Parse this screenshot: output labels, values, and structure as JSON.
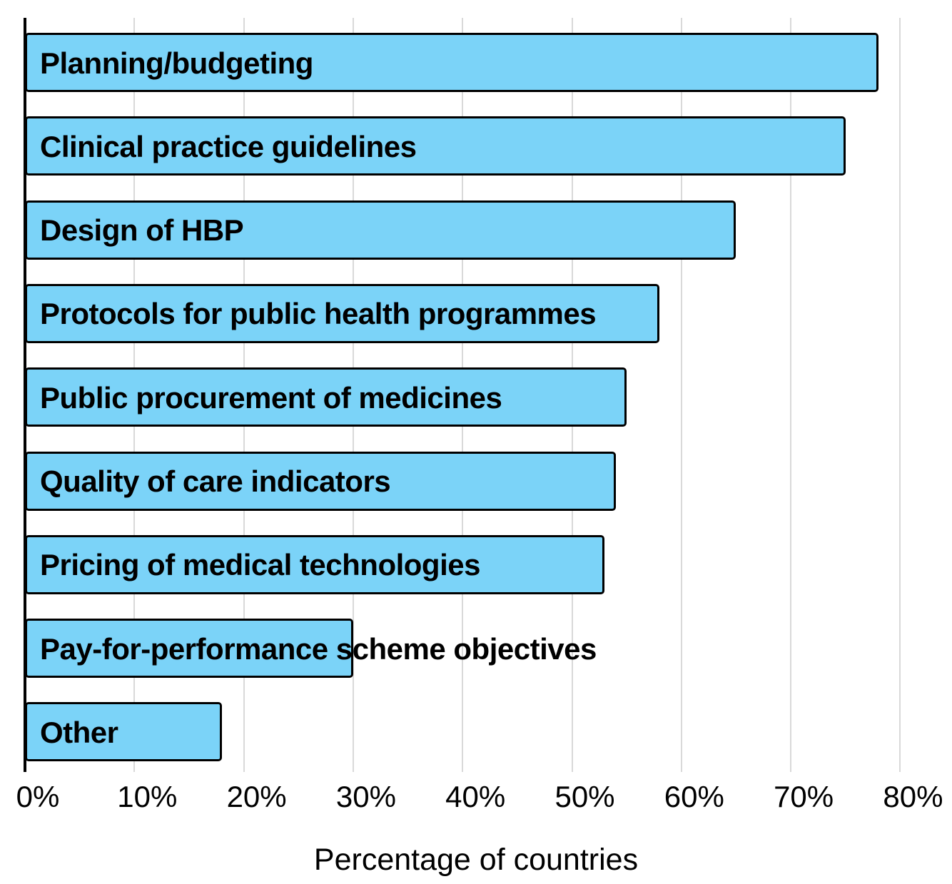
{
  "chart_data": {
    "type": "bar",
    "orientation": "horizontal",
    "title": "",
    "xlabel": "Percentage of countries",
    "ylabel": "",
    "categories": [
      "Planning/budgeting",
      "Clinical practice guidelines",
      "Design of HBP",
      "Protocols for public health programmes",
      "Public procurement of medicines",
      "Quality of care indicators",
      "Pricing of medical technologies",
      "Pay-for-performance scheme objectives",
      "Other"
    ],
    "values": [
      78,
      75,
      65,
      58,
      55,
      54,
      53,
      30,
      18
    ],
    "unit": "%",
    "xlim": [
      0,
      80
    ],
    "xticks": [
      0,
      10,
      20,
      30,
      40,
      50,
      60,
      70,
      80
    ],
    "xtick_labels": [
      "0%",
      "10%",
      "20%",
      "30%",
      "40%",
      "50%",
      "60%",
      "70%",
      "80%"
    ],
    "grid": true,
    "legend": false,
    "label_position": "inside-left",
    "colors": {
      "bar_fill": "#7BD3F8",
      "bar_border": "#000000",
      "gridline": "#D9D9D9",
      "axis_line": "#000000",
      "text": "#000000"
    }
  }
}
